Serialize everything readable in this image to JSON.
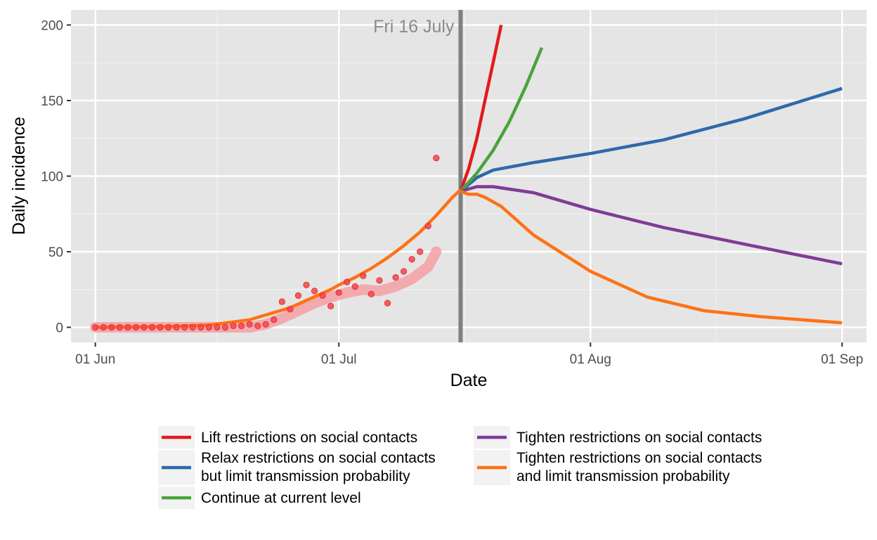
{
  "chart_data": {
    "type": "line",
    "xlabel": "Date",
    "ylabel": "Daily incidence",
    "xlim": [
      "2021-05-29",
      "2021-09-04"
    ],
    "ylim": [
      -10,
      210
    ],
    "x_ticks": [
      {
        "date": "2021-06-01",
        "label": "01 Jun"
      },
      {
        "date": "2021-07-01",
        "label": "01 Jul"
      },
      {
        "date": "2021-08-01",
        "label": "01 Aug"
      },
      {
        "date": "2021-09-01",
        "label": "01 Sep"
      }
    ],
    "y_ticks": [
      0,
      50,
      100,
      150,
      200
    ],
    "grid": true,
    "background": "#e5e5e5",
    "vline": {
      "date": "2021-07-16",
      "label": "Fri 16 July",
      "color": "#808080"
    },
    "observed_points": {
      "color": "#f8434a",
      "x": [
        "2021-06-01",
        "2021-06-02",
        "2021-06-03",
        "2021-06-04",
        "2021-06-05",
        "2021-06-06",
        "2021-06-07",
        "2021-06-08",
        "2021-06-09",
        "2021-06-10",
        "2021-06-11",
        "2021-06-12",
        "2021-06-13",
        "2021-06-14",
        "2021-06-15",
        "2021-06-16",
        "2021-06-17",
        "2021-06-18",
        "2021-06-19",
        "2021-06-20",
        "2021-06-21",
        "2021-06-22",
        "2021-06-23",
        "2021-06-24",
        "2021-06-25",
        "2021-06-26",
        "2021-06-27",
        "2021-06-28",
        "2021-06-29",
        "2021-06-30",
        "2021-07-01",
        "2021-07-02",
        "2021-07-03",
        "2021-07-04",
        "2021-07-05",
        "2021-07-06",
        "2021-07-07",
        "2021-07-08",
        "2021-07-09",
        "2021-07-10",
        "2021-07-11",
        "2021-07-12",
        "2021-07-13"
      ],
      "y": [
        0,
        0,
        0,
        0,
        0,
        0,
        0,
        0,
        0,
        0,
        0,
        0,
        0,
        0,
        0,
        0,
        0,
        1,
        1,
        2,
        1,
        2,
        5,
        17,
        12,
        21,
        28,
        24,
        21,
        14,
        23,
        30,
        27,
        34,
        22,
        31,
        16,
        33,
        37,
        45,
        50,
        67,
        112
      ]
    },
    "observed_band": {
      "color": "#f4a0a4",
      "x": [
        "2021-06-01",
        "2021-06-10",
        "2021-06-20",
        "2021-06-22",
        "2021-06-24",
        "2021-06-26",
        "2021-06-28",
        "2021-06-30",
        "2021-07-02",
        "2021-07-04",
        "2021-07-06",
        "2021-07-08",
        "2021-07-10",
        "2021-07-12",
        "2021-07-13"
      ],
      "y": [
        0,
        0,
        0,
        2,
        6,
        11,
        16,
        20,
        23,
        25,
        24,
        27,
        32,
        40,
        50
      ]
    },
    "series": [
      {
        "name": "Lift restrictions on social contacts",
        "color": "#e41a1c",
        "x": [
          "2021-07-16",
          "2021-07-17",
          "2021-07-18",
          "2021-07-19",
          "2021-07-20",
          "2021-07-21"
        ],
        "y": [
          90,
          105,
          125,
          150,
          175,
          200
        ]
      },
      {
        "name": "Relax restrictions on social contacts but limit transmission probability",
        "color": "#2e69aa",
        "x": [
          "2021-07-16",
          "2021-07-18",
          "2021-07-20",
          "2021-07-25",
          "2021-08-01",
          "2021-08-10",
          "2021-08-20",
          "2021-09-01"
        ],
        "y": [
          90,
          99,
          104,
          109,
          115,
          124,
          138,
          158
        ]
      },
      {
        "name": "Continue at current level",
        "color": "#4aa33c",
        "x": [
          "2021-07-16",
          "2021-07-18",
          "2021-07-20",
          "2021-07-22",
          "2021-07-24",
          "2021-07-26"
        ],
        "y": [
          90,
          102,
          117,
          136,
          159,
          185
        ]
      },
      {
        "name": "Tighten restrictions on social contacts",
        "color": "#7f3b97",
        "x": [
          "2021-07-16",
          "2021-07-18",
          "2021-07-20",
          "2021-07-25",
          "2021-08-01",
          "2021-08-10",
          "2021-08-20",
          "2021-09-01"
        ],
        "y": [
          90,
          93,
          93,
          89,
          78,
          66,
          55,
          42
        ]
      },
      {
        "name": "Tighten restrictions on social contacts and limit transmission probability",
        "color": "#fd7214",
        "x": [
          "2021-07-16",
          "2021-07-17",
          "2021-07-18",
          "2021-07-19",
          "2021-07-21",
          "2021-07-25",
          "2021-08-01",
          "2021-08-08",
          "2021-08-15",
          "2021-08-22",
          "2021-09-01"
        ],
        "y": [
          90,
          88,
          88,
          86,
          80,
          61,
          37,
          20,
          11,
          7,
          3
        ]
      },
      {
        "name": "",
        "color": "#fd7214",
        "x": [
          "2021-06-01",
          "2021-06-10",
          "2021-06-15",
          "2021-06-20",
          "2021-06-25",
          "2021-06-30",
          "2021-07-01",
          "2021-07-03",
          "2021-07-05",
          "2021-07-07",
          "2021-07-09",
          "2021-07-11",
          "2021-07-13",
          "2021-07-15",
          "2021-07-16"
        ],
        "y": [
          0,
          0.5,
          1.5,
          5,
          13,
          25,
          28,
          33,
          39,
          46,
          54,
          63,
          74,
          86,
          91
        ]
      }
    ],
    "legend": {
      "placement": "bottom",
      "entries_left": [
        {
          "lines": [
            "Lift restrictions on social contacts"
          ],
          "color": "#e41a1c"
        },
        {
          "lines": [
            "Relax restrictions on social contacts",
            "but limit transmission probability"
          ],
          "color": "#2e69aa"
        },
        {
          "lines": [
            "Continue at current level"
          ],
          "color": "#4aa33c"
        }
      ],
      "entries_right": [
        {
          "lines": [
            "Tighten restrictions on social contacts"
          ],
          "color": "#7f3b97"
        },
        {
          "lines": [
            "Tighten restrictions on social contacts",
            "and limit transmission probability"
          ],
          "color": "#fd7214"
        }
      ]
    }
  }
}
